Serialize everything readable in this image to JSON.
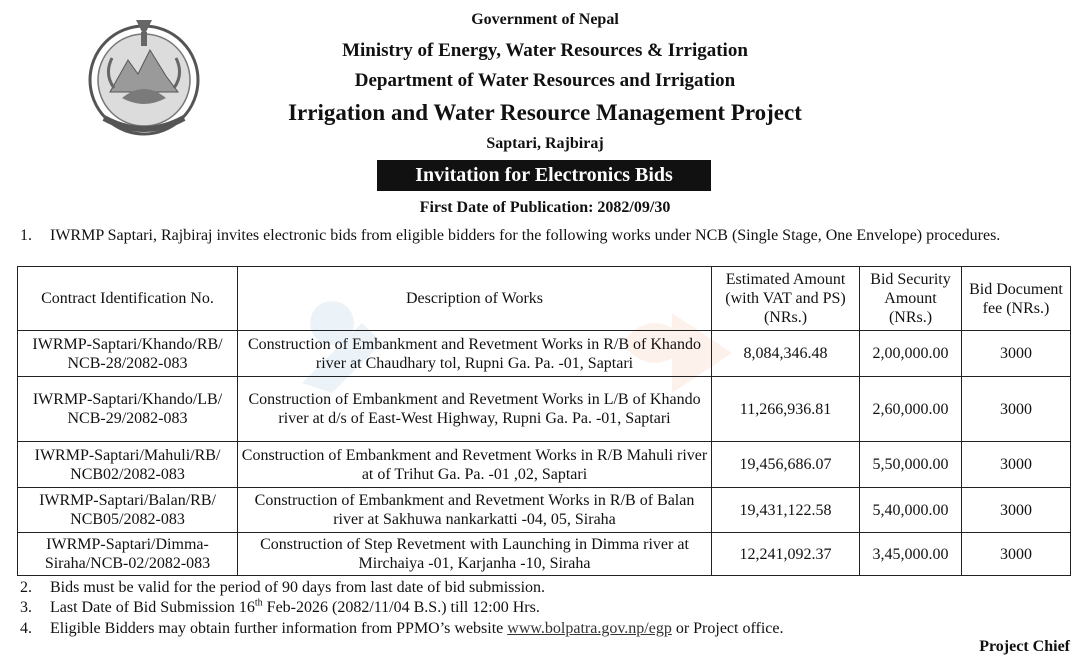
{
  "header": {
    "government": "Government of Nepal",
    "ministry": "Ministry of Energy, Water Resources & Irrigation",
    "department": "Department of Water Resources and Irrigation",
    "project": "Irrigation and Water Resource Management Project",
    "location": "Saptari, Rajbiraj",
    "banner": "Invitation for Electronics Bids",
    "publication": "First Date of Publication: 2082/09/30"
  },
  "notice": {
    "p1_num": "1.",
    "p1_text": "IWRMP Saptari, Rajbiraj invites electronic bids from eligible bidders for the following works under NCB (Single Stage, One Envelope) procedures.",
    "p2_num": "2.",
    "p2_text": "Bids must be valid for the period of 90 days from last date of bid submission.",
    "p3_num": "3.",
    "p3_pre": "Last Date of  Bid Submission 16",
    "p3_sup": "th",
    "p3_post": " Feb-2026 (2082/11/04 B.S.) till 12:00 Hrs.",
    "p4_num": "4.",
    "p4_pre": "Eligible Bidders may obtain further information from PPMO’s website ",
    "p4_link": "www.bolpatra.gov.np/egp",
    "p4_post": " or Project office."
  },
  "table": {
    "headers": {
      "contract_id": "Contract Identification No.",
      "description": "Description of Works",
      "estimated": "Estimated Amount (with VAT and PS) (NRs.)",
      "security": "Bid Security Amount (NRs.)",
      "fee": "Bid Document fee (NRs.)"
    },
    "rows": [
      {
        "contract_id": "IWRMP-Saptari/Khando/RB/ NCB-28/2082-083",
        "description": "Construction of Embankment and Revetment Works in R/B of Khando river at Chaudhary tol, Rupni Ga. Pa. -01, Saptari",
        "estimated": "8,084,346.48",
        "security": "2,00,000.00",
        "fee": "3000"
      },
      {
        "contract_id": "IWRMP-Saptari/Khando/LB/ NCB-29/2082-083",
        "description": "Construction of Embankment and Revetment Works in L/B of Khando river at d/s of East-West Highway, Rupni Ga. Pa. -01, Saptari",
        "estimated": "11,266,936.81",
        "security": "2,60,000.00",
        "fee": "3000"
      },
      {
        "contract_id": "IWRMP-Saptari/Mahuli/RB/ NCB02/2082-083",
        "description": "Construction of Embankment and Revetment Works in R/B Mahuli river at of Trihut Ga. Pa. -01 ,02, Saptari",
        "estimated": "19,456,686.07",
        "security": "5,50,000.00",
        "fee": "3000"
      },
      {
        "contract_id": "IWRMP-Saptari/Balan/RB/ NCB05/2082-083",
        "description": "Construction of Embankment and Revetment Works in R/B of Balan river at Sakhuwa nankarkatti -04, 05, Siraha",
        "estimated": "19,431,122.58",
        "security": "5,40,000.00",
        "fee": "3000"
      },
      {
        "contract_id": "IWRMP-Saptari/Dimma-Siraha/NCB-02/2082-083",
        "description": "Construction of Step Revetment with Launching in Dimma river at Mirchaiya -01, Karjanha -10, Siraha",
        "estimated": "12,241,092.37",
        "security": "3,45,000.00",
        "fee": "3000"
      }
    ]
  },
  "signature": "Project Chief",
  "colors": {
    "text": "#111111",
    "banner_bg": "#111111",
    "banner_text": "#ffffff",
    "watermark_blue": "#6fa7d8",
    "watermark_orange": "#f0a06a"
  },
  "icons": {
    "emblem": "nepal-emblem-icon",
    "watermark": "watermark-logo-icon"
  }
}
